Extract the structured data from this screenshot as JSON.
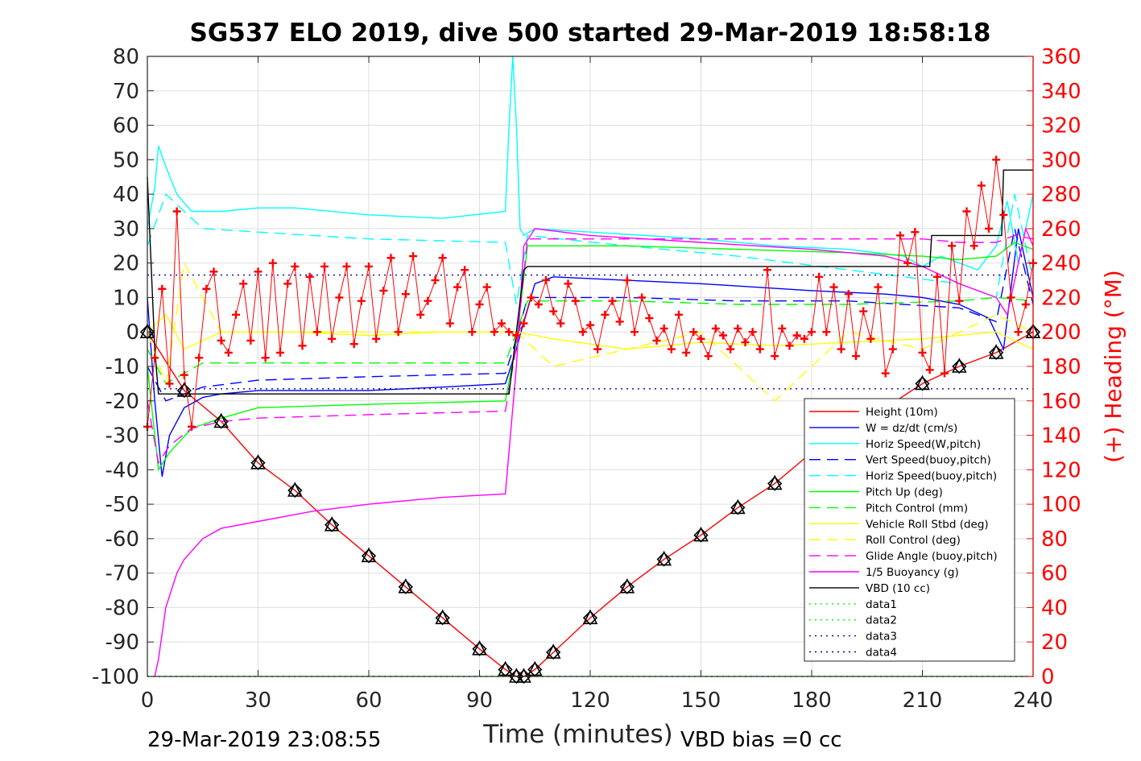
{
  "chart_data": {
    "type": "line",
    "title": "SG537 ELO 2019, dive 500 started 29-Mar-2019 18:58:18",
    "xlabel": "Time (minutes)",
    "ylabel_right": "(+) Heading (°M)",
    "footer_left": "29-Mar-2019 23:08:55",
    "footer_right": "VBD bias =0 cc",
    "xlim": [
      0,
      240
    ],
    "ylim": [
      -100,
      80
    ],
    "ylim_right": [
      0,
      360
    ],
    "x_ticks": [
      0,
      30,
      60,
      90,
      120,
      150,
      180,
      210,
      240
    ],
    "y_ticks": [
      -100,
      -90,
      -80,
      -70,
      -60,
      -50,
      -40,
      -30,
      -20,
      -10,
      0,
      10,
      20,
      30,
      40,
      50,
      60,
      70,
      80
    ],
    "y2_ticks": [
      0,
      20,
      40,
      60,
      80,
      100,
      120,
      140,
      160,
      180,
      200,
      220,
      240,
      260,
      280,
      300,
      320,
      340,
      360
    ],
    "grid": true,
    "legend_position": "bottom-right",
    "colors": {
      "heading": "#ff0000",
      "right_axis": "#ff0000"
    },
    "series": [
      {
        "name": "Height (10m)",
        "color": "#ff0000",
        "style": "solid",
        "x": [
          0,
          10,
          20,
          30,
          40,
          50,
          60,
          70,
          80,
          90,
          97,
          100,
          102,
          105,
          110,
          120,
          130,
          140,
          150,
          160,
          170,
          180,
          190,
          200,
          210,
          220,
          230,
          240
        ],
        "y": [
          0,
          -17,
          -26,
          -38,
          -46,
          -56,
          -65,
          -74,
          -83,
          -92,
          -98,
          -100,
          -100,
          -98,
          -93,
          -83,
          -74,
          -66,
          -59,
          -51,
          -44,
          -35,
          -28,
          -22,
          -15,
          -10,
          -6,
          0
        ]
      },
      {
        "name": "W = dz/dt (cm/s)",
        "color": "#0000ff",
        "style": "solid",
        "x": [
          0,
          2,
          4,
          6,
          10,
          15,
          20,
          30,
          40,
          60,
          80,
          97,
          100,
          102,
          105,
          110,
          130,
          150,
          180,
          200,
          210,
          220,
          228,
          232,
          236,
          240
        ],
        "y": [
          10,
          -20,
          -42,
          -30,
          -22,
          -19,
          -18,
          -17,
          -17,
          -17,
          -16,
          -15,
          -5,
          3,
          14,
          16,
          15,
          14,
          12,
          11,
          10,
          8,
          4,
          -5,
          30,
          10
        ]
      },
      {
        "name": "Horiz Speed(W,pitch)",
        "color": "#00ffff",
        "style": "solid",
        "x": [
          0,
          2,
          3,
          5,
          8,
          12,
          20,
          30,
          40,
          60,
          80,
          97,
          98,
          99,
          100,
          101,
          102,
          105,
          120,
          150,
          170,
          190,
          205,
          210,
          215,
          220,
          225,
          230,
          233,
          236,
          240
        ],
        "y": [
          30,
          42,
          54,
          48,
          40,
          35,
          35,
          36,
          36,
          34,
          33,
          35,
          60,
          80,
          60,
          30,
          28,
          30,
          29,
          27,
          25,
          24,
          22,
          19,
          22,
          20,
          18,
          25,
          38,
          20,
          40
        ]
      },
      {
        "name": "Vert Speed(buoy,pitch)",
        "color": "#0000ff",
        "style": "dashed",
        "x": [
          0,
          5,
          15,
          30,
          60,
          97,
          100,
          103,
          130,
          160,
          190,
          220,
          230,
          235,
          240
        ],
        "y": [
          -10,
          -20,
          -16,
          -14,
          -13,
          -12,
          -2,
          10,
          10,
          9,
          9,
          7,
          3,
          30,
          8
        ]
      },
      {
        "name": "Horiz Speed(buoy,pitch)",
        "color": "#00ffff",
        "style": "dashed",
        "x": [
          0,
          5,
          15,
          30,
          60,
          97,
          100,
          103,
          130,
          160,
          190,
          220,
          230,
          235,
          240
        ],
        "y": [
          25,
          40,
          30,
          29,
          27,
          26,
          8,
          28,
          25,
          22,
          18,
          14,
          10,
          40,
          15
        ]
      },
      {
        "name": "Pitch Up (deg)",
        "color": "#00ff00",
        "style": "solid",
        "x": [
          0,
          3,
          6,
          12,
          20,
          30,
          60,
          97,
          100,
          103,
          130,
          160,
          190,
          210,
          220,
          230,
          235,
          240
        ],
        "y": [
          -10,
          -40,
          -35,
          -28,
          -25,
          -22,
          -21,
          -20,
          -3,
          25,
          25,
          24,
          23,
          22,
          21,
          22,
          26,
          24
        ]
      },
      {
        "name": "Pitch Control (mm)",
        "color": "#00ff00",
        "style": "dashed",
        "x": [
          0,
          5,
          15,
          30,
          60,
          97,
          100,
          103,
          130,
          160,
          190,
          220,
          230,
          240
        ],
        "y": [
          -5,
          -15,
          -9,
          -9,
          -9,
          -9,
          0,
          9,
          9,
          8,
          8,
          9,
          10,
          9
        ]
      },
      {
        "name": "Vehicle Roll Stbd (deg)",
        "color": "#ffff00",
        "style": "solid",
        "x": [
          0,
          5,
          10,
          20,
          40,
          60,
          80,
          97,
          100,
          110,
          130,
          150,
          170,
          190,
          210,
          230,
          240
        ],
        "y": [
          0,
          5,
          -5,
          0,
          0,
          -1,
          0,
          0,
          0,
          -2,
          -5,
          -3,
          -4,
          -3,
          -2,
          0,
          -5
        ]
      },
      {
        "name": "Roll Control (deg)",
        "color": "#ffff00",
        "style": "dashed",
        "x": [
          0,
          5,
          10,
          20,
          40,
          60,
          80,
          97,
          100,
          110,
          130,
          150,
          170,
          190,
          210,
          230,
          240
        ],
        "y": [
          0,
          -15,
          20,
          0,
          0,
          0,
          0,
          0,
          0,
          -10,
          -5,
          0,
          -20,
          0,
          -5,
          5,
          0
        ]
      },
      {
        "name": "Glide Angle (buoy,pitch)",
        "color": "#ff00ff",
        "style": "dashed",
        "x": [
          0,
          3,
          6,
          12,
          20,
          30,
          60,
          97,
          100,
          103,
          130,
          160,
          190,
          210,
          220,
          230,
          235,
          240
        ],
        "y": [
          -20,
          -38,
          -33,
          -28,
          -26,
          -25,
          -24,
          -23,
          -4,
          27,
          27,
          27,
          27,
          27,
          26,
          26,
          28,
          27
        ]
      },
      {
        "name": "1/5 Buoyancy (g)",
        "color": "#ff00ff",
        "style": "solid",
        "x": [
          2,
          3,
          5,
          8,
          10,
          15,
          20,
          30,
          45,
          60,
          80,
          97,
          100,
          102,
          105,
          120,
          150,
          180,
          200,
          210,
          220,
          230,
          233,
          235,
          238,
          240
        ],
        "y": [
          -100,
          -95,
          -80,
          -70,
          -66,
          -60,
          -57,
          -55,
          -52,
          -50,
          -48,
          -47,
          -10,
          25,
          30,
          28,
          26,
          24,
          22,
          19,
          14,
          10,
          5,
          15,
          30,
          25
        ]
      },
      {
        "name": "VBD (10 cc)",
        "color": "#000000",
        "style": "solid",
        "x": [
          0,
          1,
          2,
          3,
          97,
          98,
          100,
          102,
          103,
          104,
          105,
          105.5,
          170,
          171,
          212,
          212.5,
          231,
          231.5,
          232,
          240
        ],
        "y": [
          45,
          20,
          -5,
          -18,
          -18,
          -18,
          0,
          18,
          19,
          19,
          19,
          19,
          19,
          19,
          19,
          28,
          28,
          28,
          47,
          47
        ]
      },
      {
        "name": "data1",
        "color": "#00ff00",
        "style": "dotted",
        "x": [
          0,
          240
        ],
        "y": [
          -100,
          -100
        ]
      },
      {
        "name": "data2",
        "color": "#00ff00",
        "style": "dotted",
        "x": [
          0,
          240
        ],
        "y": [
          -100,
          -100
        ]
      },
      {
        "name": "data3",
        "color": "#0000aa",
        "style": "dotted",
        "x": [
          0,
          240
        ],
        "y": [
          16.5,
          16.5
        ]
      },
      {
        "name": "data4",
        "color": "#0000aa",
        "style": "dotted",
        "x": [
          0,
          240
        ],
        "y": [
          -16.5,
          -16.5
        ]
      }
    ],
    "heading_series": {
      "axis": "right",
      "marker": "+",
      "color": "#ff0000",
      "x": [
        0,
        2,
        4,
        6,
        8,
        10,
        12,
        14,
        16,
        18,
        20,
        22,
        24,
        26,
        28,
        30,
        32,
        34,
        36,
        38,
        40,
        42,
        44,
        46,
        48,
        50,
        52,
        54,
        56,
        58,
        60,
        62,
        64,
        66,
        68,
        70,
        72,
        74,
        76,
        78,
        80,
        82,
        84,
        86,
        88,
        90,
        92,
        94,
        96,
        98,
        100,
        102,
        104,
        106,
        108,
        110,
        112,
        114,
        116,
        118,
        120,
        122,
        124,
        126,
        128,
        130,
        132,
        134,
        136,
        138,
        140,
        142,
        144,
        146,
        148,
        150,
        152,
        154,
        156,
        158,
        160,
        162,
        164,
        166,
        168,
        170,
        172,
        174,
        176,
        178,
        180,
        182,
        184,
        186,
        188,
        190,
        192,
        194,
        196,
        198,
        200,
        202,
        204,
        206,
        208,
        210,
        212,
        214,
        216,
        218,
        220,
        222,
        224,
        226,
        228,
        230,
        232,
        234,
        236,
        238,
        240
      ],
      "y": [
        145,
        185,
        225,
        170,
        270,
        175,
        145,
        185,
        225,
        235,
        195,
        188,
        210,
        228,
        195,
        235,
        185,
        240,
        188,
        228,
        238,
        192,
        232,
        200,
        238,
        196,
        220,
        238,
        193,
        218,
        238,
        196,
        224,
        243,
        200,
        222,
        244,
        210,
        218,
        230,
        243,
        205,
        226,
        236,
        200,
        216,
        226,
        200,
        205,
        200,
        198,
        205,
        220,
        216,
        230,
        212,
        205,
        228,
        218,
        200,
        204,
        190,
        210,
        218,
        206,
        230,
        200,
        220,
        208,
        195,
        202,
        190,
        210,
        188,
        200,
        196,
        186,
        202,
        198,
        190,
        202,
        194,
        200,
        190,
        236,
        186,
        202,
        192,
        198,
        196,
        200,
        232,
        200,
        226,
        190,
        222,
        186,
        212,
        196,
        226,
        176,
        190,
        256,
        240,
        258,
        188,
        178,
        232,
        176,
        250,
        218,
        270,
        250,
        285,
        260,
        300,
        268,
        220,
        200,
        216,
        240
      ]
    }
  }
}
